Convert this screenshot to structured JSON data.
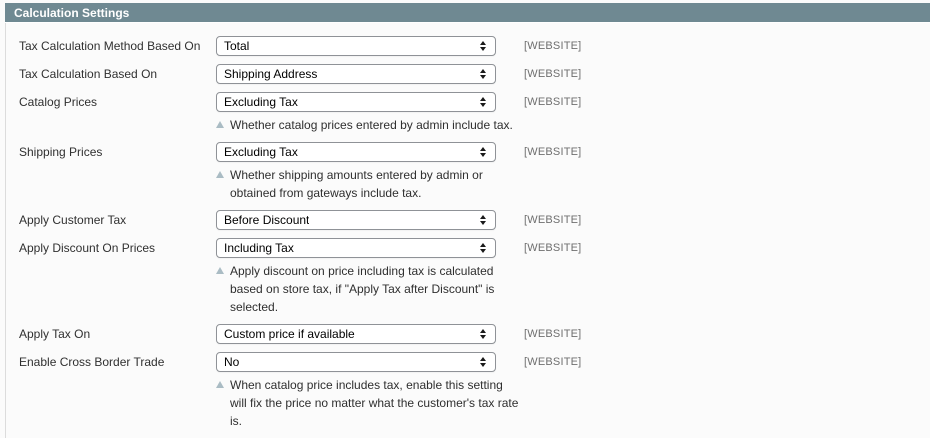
{
  "section": {
    "title": "Calculation Settings"
  },
  "colors": {
    "header_bg": "#6f8992",
    "header_text": "#ffffff",
    "scope_text": "#6f6f6f",
    "note_marker": "#aabcc4",
    "select_border": "#8f9297"
  },
  "rows": [
    {
      "label": "Tax Calculation Method Based On",
      "value": "Total",
      "scope": "[WEBSITE]"
    },
    {
      "label": "Tax Calculation Based On",
      "value": "Shipping Address",
      "scope": "[WEBSITE]"
    },
    {
      "label": "Catalog Prices",
      "value": "Excluding Tax",
      "scope": "[WEBSITE]",
      "note": "Whether catalog prices entered by admin include tax."
    },
    {
      "label": "Shipping Prices",
      "value": "Excluding Tax",
      "scope": "[WEBSITE]",
      "note": "Whether shipping amounts entered by admin or\nobtained from gateways include tax."
    },
    {
      "label": "Apply Customer Tax",
      "value": "Before Discount",
      "scope": "[WEBSITE]"
    },
    {
      "label": "Apply Discount On Prices",
      "value": "Including Tax",
      "scope": "[WEBSITE]",
      "note": "Apply discount on price including tax is calculated\nbased on store tax, if \"Apply Tax after Discount\" is\nselected."
    },
    {
      "label": "Apply Tax On",
      "value": "Custom price if available",
      "scope": "[WEBSITE]"
    },
    {
      "label": "Enable Cross Border Trade",
      "value": "No",
      "scope": "[WEBSITE]",
      "note": "When catalog price includes tax, enable this setting\nwill fix the price no matter what the customer's tax rate\nis."
    }
  ]
}
